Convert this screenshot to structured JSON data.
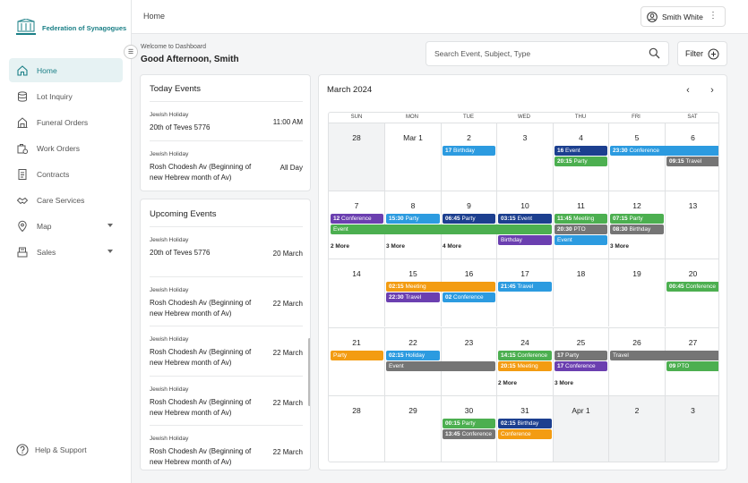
{
  "app": {
    "logo_text": "Federation of Synagogues"
  },
  "sidebar": {
    "items": [
      {
        "label": "Home",
        "icon": "home-icon",
        "active": true,
        "caret": false
      },
      {
        "label": "Lot Inquiry",
        "icon": "database-icon",
        "active": false,
        "caret": false
      },
      {
        "label": "Funeral Orders",
        "icon": "building-icon",
        "active": false,
        "caret": false
      },
      {
        "label": "Work Orders",
        "icon": "work-order-icon",
        "active": false,
        "caret": false
      },
      {
        "label": "Contracts",
        "icon": "contract-icon",
        "active": false,
        "caret": false
      },
      {
        "label": "Care Services",
        "icon": "handshake-icon",
        "active": false,
        "caret": false
      },
      {
        "label": "Map",
        "icon": "map-pin-icon",
        "active": false,
        "caret": true
      },
      {
        "label": "Sales",
        "icon": "register-icon",
        "active": false,
        "caret": true
      }
    ],
    "help_label": "Help & Support"
  },
  "topbar": {
    "breadcrumb": "Home",
    "user_name": "Smith White"
  },
  "header": {
    "welcome": "Welcome to Dashboard",
    "greeting": "Good Afternoon, Smith",
    "search_placeholder": "Search Event, Subject, Type",
    "filter_label": "Filter"
  },
  "today_events": {
    "title": "Today Events",
    "items": [
      {
        "type": "Jewish Holiday",
        "name": "20th of Teves 5776",
        "when": "11:00 AM"
      },
      {
        "type": "Jewish Holiday",
        "name": "Rosh Chodesh Av (Beginning of new Hebrew month of Av)",
        "when": "All Day"
      }
    ]
  },
  "upcoming_events": {
    "title": "Upcoming Events",
    "items": [
      {
        "type": "Jewish Holiday",
        "name": "20th of Teves 5776",
        "when": "20 March"
      },
      {
        "type": "Jewish Holiday",
        "name": "Rosh Chodesh Av (Beginning of new Hebrew month of Av)",
        "when": "22 March"
      },
      {
        "type": "Jewish Holiday",
        "name": "Rosh Chodesh Av (Beginning of new Hebrew month of Av)",
        "when": "22 March"
      },
      {
        "type": "Jewish Holiday",
        "name": "Rosh Chodesh Av (Beginning of new Hebrew month of Av)",
        "when": "22 March"
      },
      {
        "type": "Jewish Holiday",
        "name": "Rosh Chodesh Av (Beginning of new Hebrew month of Av)",
        "when": "22 March"
      }
    ]
  },
  "calendar": {
    "title": "March 2024",
    "weekdays": [
      "SUN",
      "MON",
      "TUE",
      "WED",
      "THU",
      "FRI",
      "SAT"
    ],
    "weeks": [
      [
        {
          "n": "28",
          "out": true
        },
        {
          "n": "Mar 1"
        },
        {
          "n": "2"
        },
        {
          "n": "3"
        },
        {
          "n": "4"
        },
        {
          "n": "5"
        },
        {
          "n": "6"
        }
      ],
      [
        {
          "n": "7"
        },
        {
          "n": "8"
        },
        {
          "n": "9"
        },
        {
          "n": "10"
        },
        {
          "n": "11"
        },
        {
          "n": "12"
        },
        {
          "n": "13"
        }
      ],
      [
        {
          "n": "14"
        },
        {
          "n": "15"
        },
        {
          "n": "16"
        },
        {
          "n": "17"
        },
        {
          "n": "18"
        },
        {
          "n": "19"
        },
        {
          "n": "20"
        }
      ],
      [
        {
          "n": "21"
        },
        {
          "n": "22"
        },
        {
          "n": "23"
        },
        {
          "n": "24"
        },
        {
          "n": "25"
        },
        {
          "n": "26"
        },
        {
          "n": "27"
        }
      ],
      [
        {
          "n": "28"
        },
        {
          "n": "29"
        },
        {
          "n": "30"
        },
        {
          "n": "31"
        },
        {
          "n": "Apr 1",
          "out": true
        },
        {
          "n": "2",
          "out": true
        },
        {
          "n": "3",
          "out": true
        }
      ]
    ],
    "events": [
      {
        "week": 0,
        "day": 2,
        "span": 1,
        "slot": 0,
        "time": "17",
        "label": "Birthday",
        "color": "#2c9be0"
      },
      {
        "week": 0,
        "day": 4,
        "span": 1,
        "slot": 0,
        "time": "16",
        "label": "Event",
        "color": "#1c3f8f"
      },
      {
        "week": 0,
        "day": 4,
        "span": 1,
        "slot": 1,
        "time": "20:15",
        "label": "Party",
        "color": "#4caf50"
      },
      {
        "week": 0,
        "day": 5,
        "span": 2,
        "slot": 0,
        "time": "23:30",
        "label": "Conference",
        "color": "#2c9be0"
      },
      {
        "week": 0,
        "day": 6,
        "span": 1,
        "slot": 1,
        "time": "09:15",
        "label": "Travel",
        "color": "#757575"
      },
      {
        "week": 1,
        "day": 0,
        "span": 1,
        "slot": 0,
        "time": "12",
        "label": "Conference",
        "color": "#6b3fb0"
      },
      {
        "week": 1,
        "day": 1,
        "span": 1,
        "slot": 0,
        "time": "15:30",
        "label": "Party",
        "color": "#2c9be0"
      },
      {
        "week": 1,
        "day": 2,
        "span": 1,
        "slot": 0,
        "time": "06:45",
        "label": "Party",
        "color": "#1c3f8f"
      },
      {
        "week": 1,
        "day": 3,
        "span": 1,
        "slot": 0,
        "time": "03:15",
        "label": "Event",
        "color": "#1c3f8f"
      },
      {
        "week": 1,
        "day": 4,
        "span": 1,
        "slot": 0,
        "time": "11:45",
        "label": "Meeting",
        "color": "#4caf50"
      },
      {
        "week": 1,
        "day": 5,
        "span": 1,
        "slot": 0,
        "time": "07:15",
        "label": "Party",
        "color": "#4caf50"
      },
      {
        "week": 1,
        "day": 0,
        "span": 4,
        "slot": 1,
        "time": "",
        "label": "Event",
        "color": "#4caf50"
      },
      {
        "week": 1,
        "day": 4,
        "span": 1,
        "slot": 1,
        "time": "20:30",
        "label": "PTO",
        "color": "#757575"
      },
      {
        "week": 1,
        "day": 5,
        "span": 1,
        "slot": 1,
        "time": "08:30",
        "label": "Birthday",
        "color": "#757575"
      },
      {
        "week": 1,
        "day": 3,
        "span": 1,
        "slot": 2,
        "time": "",
        "label": "Birthday",
        "color": "#6b3fb0"
      },
      {
        "week": 1,
        "day": 4,
        "span": 1,
        "slot": 2,
        "time": "",
        "label": "Event",
        "color": "#2c9be0"
      },
      {
        "week": 2,
        "day": 1,
        "span": 2,
        "slot": 0,
        "time": "02:15",
        "label": "Meeting",
        "color": "#f39c12"
      },
      {
        "week": 2,
        "day": 3,
        "span": 1,
        "slot": 0,
        "time": "21:45",
        "label": "Travel",
        "color": "#2c9be0"
      },
      {
        "week": 2,
        "day": 6,
        "span": 1,
        "slot": 0,
        "time": "00:45",
        "label": "Conference",
        "color": "#4caf50"
      },
      {
        "week": 2,
        "day": 1,
        "span": 1,
        "slot": 1,
        "time": "22:30",
        "label": "Travel",
        "color": "#6b3fb0"
      },
      {
        "week": 2,
        "day": 2,
        "span": 1,
        "slot": 1,
        "time": "02",
        "label": "Conference",
        "color": "#2c9be0"
      },
      {
        "week": 3,
        "day": 0,
        "span": 1,
        "slot": 0,
        "time": "",
        "label": "Party",
        "color": "#f39c12"
      },
      {
        "week": 3,
        "day": 1,
        "span": 1,
        "slot": 0,
        "time": "02:15",
        "label": "Holiday",
        "color": "#2c9be0"
      },
      {
        "week": 3,
        "day": 3,
        "span": 1,
        "slot": 0,
        "time": "14:15",
        "label": "Conference",
        "color": "#4caf50"
      },
      {
        "week": 3,
        "day": 4,
        "span": 1,
        "slot": 0,
        "time": "17",
        "label": "Party",
        "color": "#757575"
      },
      {
        "week": 3,
        "day": 5,
        "span": 2,
        "slot": 0,
        "time": "",
        "label": "Travel",
        "color": "#757575"
      },
      {
        "week": 3,
        "day": 1,
        "span": 2,
        "slot": 1,
        "time": "",
        "label": "Event",
        "color": "#757575"
      },
      {
        "week": 3,
        "day": 3,
        "span": 1,
        "slot": 1,
        "time": "20:15",
        "label": "Meeting",
        "color": "#f39c12"
      },
      {
        "week": 3,
        "day": 4,
        "span": 1,
        "slot": 1,
        "time": "17",
        "label": "Conference",
        "color": "#6b3fb0"
      },
      {
        "week": 3,
        "day": 6,
        "span": 1,
        "slot": 1,
        "time": "09",
        "label": "PTO",
        "color": "#4caf50"
      },
      {
        "week": 4,
        "day": 2,
        "span": 1,
        "slot": 0,
        "time": "00:15",
        "label": "Party",
        "color": "#4caf50"
      },
      {
        "week": 4,
        "day": 3,
        "span": 1,
        "slot": 0,
        "time": "02:15",
        "label": "Birthday",
        "color": "#1c3f8f"
      },
      {
        "week": 4,
        "day": 2,
        "span": 1,
        "slot": 1,
        "time": "13:45",
        "label": "Conference",
        "color": "#757575"
      },
      {
        "week": 4,
        "day": 3,
        "span": 1,
        "slot": 1,
        "time": "",
        "label": "Conference",
        "color": "#f39c12"
      }
    ],
    "more_links": [
      {
        "week": 1,
        "day": 0,
        "label": "2 More"
      },
      {
        "week": 1,
        "day": 1,
        "label": "3 More"
      },
      {
        "week": 1,
        "day": 2,
        "label": "4 More"
      },
      {
        "week": 1,
        "day": 5,
        "label": "3 More"
      },
      {
        "week": 3,
        "day": 3,
        "label": "2 More"
      },
      {
        "week": 3,
        "day": 4,
        "label": "3 More"
      }
    ]
  }
}
